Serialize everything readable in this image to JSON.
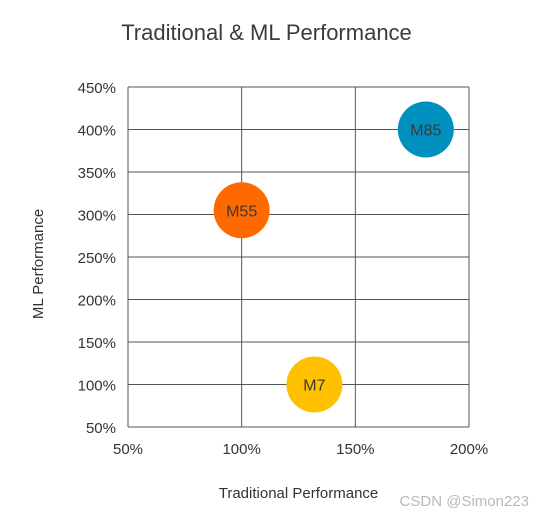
{
  "chart_data": {
    "type": "scatter",
    "title": "Traditional & ML Performance",
    "xlabel": "Traditional Performance",
    "ylabel": "ML Performance",
    "xlim": [
      50,
      200
    ],
    "ylim": [
      50,
      450
    ],
    "x_ticks": [
      50,
      100,
      150,
      200
    ],
    "y_ticks": [
      50,
      100,
      150,
      200,
      250,
      300,
      350,
      400,
      450
    ],
    "x_tick_labels": [
      "50%",
      "100%",
      "150%",
      "200%"
    ],
    "y_tick_labels": [
      "50%",
      "100%",
      "150%",
      "200%",
      "250%",
      "300%",
      "350%",
      "400%",
      "450%"
    ],
    "grid": true,
    "points": [
      {
        "label": "M55",
        "x": 100,
        "y": 305,
        "color": "#ff6a00"
      },
      {
        "label": "M7",
        "x": 132,
        "y": 100,
        "color": "#ffc000"
      },
      {
        "label": "M85",
        "x": 181,
        "y": 400,
        "color": "#0090c0"
      }
    ]
  },
  "watermark": "CSDN @Simon223"
}
